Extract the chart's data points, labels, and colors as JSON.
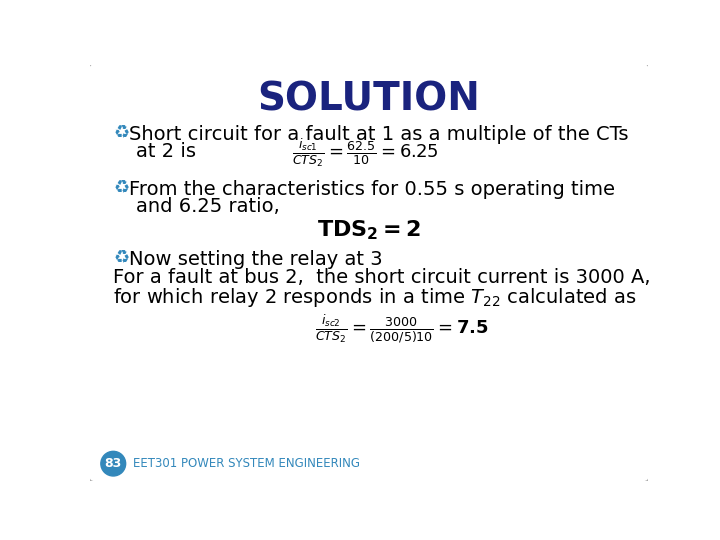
{
  "title": "SOLUTION",
  "title_color": "#1a237e",
  "title_fontsize": 28,
  "bg_color": "#ffffff",
  "slide_bg": "#ffffff",
  "border_color": "#aaaaaa",
  "bullet_color": "#3388bb",
  "text_color": "#000000",
  "footer_text": "EET301 POWER SYSTEM ENGINEERING",
  "footer_num": "83",
  "footer_color": "#3388bb",
  "footer_bg": "#3388bb",
  "font_size_main": 14,
  "font_size_eq": 13
}
